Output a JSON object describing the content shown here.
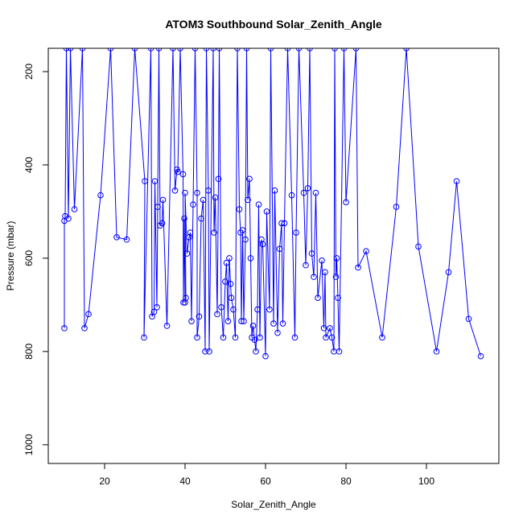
{
  "chart_data": {
    "type": "line",
    "title": "ATOM3 Southbound Solar_Zenith_Angle",
    "xlabel": "Solar_Zenith_Angle",
    "ylabel": "Pressure (mbar)",
    "xlim": [
      6.0,
      118.0
    ],
    "ylim": [
      1040,
      150
    ],
    "y_reversed": true,
    "x_ticks": [
      20,
      40,
      60,
      80,
      100
    ],
    "y_ticks": [
      200,
      400,
      600,
      800,
      1000
    ],
    "grid": false,
    "legend": "none",
    "series": [
      {
        "color": "#0000ff",
        "marker": "open-circle",
        "points": [
          [
            10.0,
            750
          ],
          [
            10.0,
            520
          ],
          [
            10.2,
            510
          ],
          [
            10.5,
            150
          ],
          [
            11.0,
            515
          ],
          [
            11.5,
            150
          ],
          [
            12.5,
            495
          ],
          [
            14.5,
            150
          ],
          [
            15.0,
            750
          ],
          [
            16.0,
            720
          ],
          [
            19.0,
            465
          ],
          [
            21.5,
            150
          ],
          [
            23.0,
            555
          ],
          [
            25.5,
            560
          ],
          [
            27.5,
            150
          ],
          [
            30.0,
            435
          ],
          [
            29.8,
            770
          ],
          [
            31.5,
            150
          ],
          [
            31.8,
            725
          ],
          [
            32.3,
            715
          ],
          [
            32.5,
            435
          ],
          [
            33.0,
            705
          ],
          [
            33.2,
            490
          ],
          [
            33.5,
            150
          ],
          [
            33.8,
            530
          ],
          [
            34.3,
            525
          ],
          [
            34.5,
            475
          ],
          [
            35.5,
            745
          ],
          [
            37.0,
            150
          ],
          [
            37.5,
            455
          ],
          [
            38.0,
            410
          ],
          [
            38.2,
            415
          ],
          [
            38.8,
            150
          ],
          [
            39.5,
            420
          ],
          [
            39.6,
            695
          ],
          [
            39.8,
            515
          ],
          [
            40.0,
            695
          ],
          [
            40.2,
            685
          ],
          [
            40.0,
            460
          ],
          [
            40.5,
            590
          ],
          [
            41.0,
            555
          ],
          [
            41.3,
            545
          ],
          [
            41.6,
            735
          ],
          [
            42.0,
            485
          ],
          [
            42.5,
            150
          ],
          [
            43.0,
            460
          ],
          [
            43.0,
            770
          ],
          [
            43.5,
            725
          ],
          [
            44.0,
            515
          ],
          [
            44.5,
            475
          ],
          [
            45.0,
            800
          ],
          [
            45.3,
            150
          ],
          [
            45.8,
            455
          ],
          [
            46.0,
            800
          ],
          [
            47.0,
            150
          ],
          [
            47.2,
            545
          ],
          [
            47.5,
            470
          ],
          [
            48.0,
            720
          ],
          [
            48.3,
            430
          ],
          [
            48.5,
            150
          ],
          [
            49.0,
            705
          ],
          [
            49.5,
            770
          ],
          [
            50.0,
            650
          ],
          [
            50.3,
            610
          ],
          [
            50.7,
            735
          ],
          [
            51.0,
            600
          ],
          [
            51.3,
            655
          ],
          [
            51.5,
            685
          ],
          [
            52.0,
            710
          ],
          [
            52.5,
            770
          ],
          [
            53.0,
            150
          ],
          [
            53.5,
            495
          ],
          [
            53.8,
            545
          ],
          [
            54.0,
            735
          ],
          [
            54.3,
            540
          ],
          [
            54.6,
            735
          ],
          [
            55.0,
            560
          ],
          [
            55.3,
            150
          ],
          [
            55.6,
            475
          ],
          [
            56.0,
            430
          ],
          [
            56.3,
            600
          ],
          [
            56.6,
            770
          ],
          [
            56.9,
            745
          ],
          [
            57.3,
            775
          ],
          [
            57.6,
            800
          ],
          [
            58.0,
            710
          ],
          [
            58.3,
            485
          ],
          [
            58.6,
            770
          ],
          [
            59.0,
            560
          ],
          [
            59.3,
            570
          ],
          [
            60.0,
            810
          ],
          [
            60.3,
            500
          ],
          [
            61.0,
            710
          ],
          [
            61.3,
            150
          ],
          [
            62.0,
            740
          ],
          [
            62.3,
            455
          ],
          [
            63.0,
            760
          ],
          [
            63.5,
            580
          ],
          [
            64.0,
            525
          ],
          [
            64.3,
            740
          ],
          [
            64.7,
            525
          ],
          [
            65.5,
            150
          ],
          [
            66.5,
            465
          ],
          [
            67.3,
            770
          ],
          [
            67.6,
            545
          ],
          [
            68.3,
            150
          ],
          [
            69.5,
            460
          ],
          [
            70.0,
            615
          ],
          [
            70.5,
            450
          ],
          [
            71.0,
            150
          ],
          [
            71.5,
            590
          ],
          [
            72.0,
            640
          ],
          [
            72.5,
            460
          ],
          [
            73.0,
            685
          ],
          [
            74.0,
            605
          ],
          [
            74.5,
            750
          ],
          [
            74.8,
            630
          ],
          [
            75.0,
            770
          ],
          [
            76.0,
            750
          ],
          [
            76.5,
            770
          ],
          [
            77.0,
            800
          ],
          [
            77.2,
            150
          ],
          [
            77.5,
            640
          ],
          [
            77.7,
            600
          ],
          [
            78.0,
            685
          ],
          [
            78.3,
            800
          ],
          [
            79.5,
            150
          ],
          [
            80.0,
            480
          ],
          [
            82.5,
            150
          ],
          [
            83.0,
            620
          ],
          [
            85.0,
            585
          ],
          [
            89.0,
            770
          ],
          [
            92.5,
            490
          ],
          [
            95.0,
            150
          ],
          [
            98.0,
            575
          ],
          [
            102.5,
            800
          ],
          [
            105.5,
            630
          ],
          [
            107.5,
            435
          ],
          [
            110.5,
            730
          ],
          [
            113.5,
            810
          ]
        ]
      }
    ]
  }
}
